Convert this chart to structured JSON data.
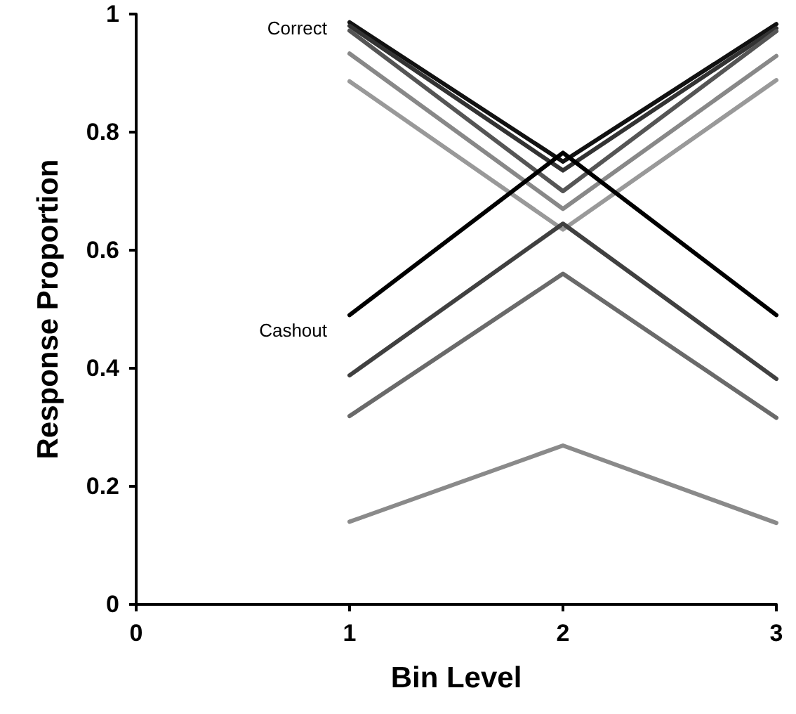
{
  "chart_data": {
    "type": "line",
    "xlabel": "Bin Level",
    "ylabel": "Response Proportion",
    "x": [
      1,
      2,
      3
    ],
    "series": [
      {
        "color": "#111111",
        "values": [
          0.986,
          0.75,
          0.983
        ]
      },
      {
        "color": "#333333",
        "values": [
          0.98,
          0.735,
          0.976
        ]
      },
      {
        "color": "#555555",
        "values": [
          0.972,
          0.7,
          0.971
        ]
      },
      {
        "color": "#888888",
        "values": [
          0.933,
          0.67,
          0.929
        ]
      },
      {
        "color": "#999999",
        "values": [
          0.886,
          0.635,
          0.888
        ]
      },
      {
        "color": "#000000",
        "values": [
          0.49,
          0.765,
          0.49
        ]
      },
      {
        "color": "#404040",
        "values": [
          0.388,
          0.645,
          0.382
        ]
      },
      {
        "color": "#6a6a6a",
        "values": [
          0.319,
          0.56,
          0.316
        ]
      },
      {
        "color": "#8a8a8a",
        "values": [
          0.14,
          0.269,
          0.138
        ]
      }
    ],
    "xlim": [
      0,
      3
    ],
    "xticks": [
      0,
      1,
      2,
      3
    ],
    "ylim": [
      0,
      1
    ],
    "yticks": [
      0,
      0.2,
      0.4,
      0.6,
      0.8,
      1
    ],
    "grid": false,
    "marker": "none",
    "line_style": "solid",
    "annotations": [
      "Correct",
      "Cashout"
    ]
  }
}
